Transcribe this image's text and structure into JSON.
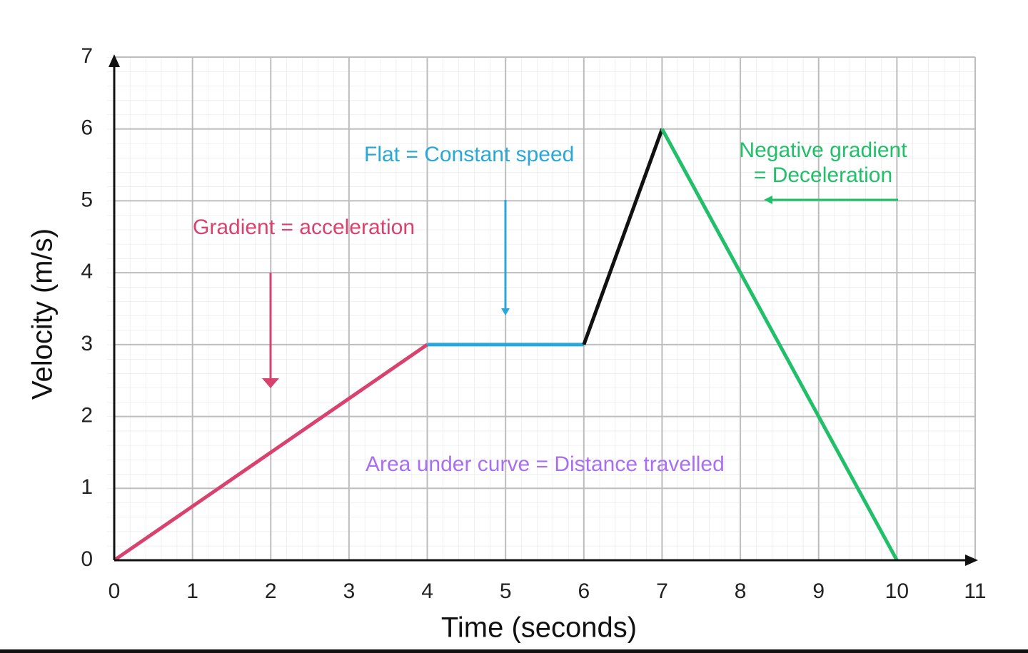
{
  "chart_data": {
    "type": "line",
    "x_label": "Time (seconds)",
    "y_label": "Velocity (m/s)",
    "xlim": [
      0,
      11
    ],
    "ylim": [
      0,
      7
    ],
    "xticks": [
      0,
      1,
      2,
      3,
      4,
      5,
      6,
      7,
      8,
      9,
      10,
      11
    ],
    "yticks": [
      0,
      1,
      2,
      3,
      4,
      5,
      6,
      7
    ],
    "grid": true,
    "series": [
      {
        "color": "#d9426e",
        "x": [
          0,
          4
        ],
        "values": [
          0,
          3
        ]
      },
      {
        "color": "#2aa7d6",
        "x": [
          4,
          6
        ],
        "values": [
          3,
          3
        ]
      },
      {
        "color": "#111111",
        "x": [
          6,
          7
        ],
        "values": [
          3,
          6
        ]
      },
      {
        "color": "#22bf6a",
        "x": [
          7,
          10
        ],
        "values": [
          6,
          0
        ]
      }
    ],
    "annotations": [
      {
        "text": [
          "Gradient = acceleration"
        ],
        "color": "#d9426e"
      },
      {
        "text": [
          "Flat = Constant speed"
        ],
        "color": "#2aa7d6"
      },
      {
        "text": [
          "Negative gradient",
          "= Deceleration"
        ],
        "color": "#22bf6a"
      },
      {
        "text": [
          "Area under curve = Distance travelled"
        ],
        "color": "#a96ff0"
      }
    ]
  }
}
